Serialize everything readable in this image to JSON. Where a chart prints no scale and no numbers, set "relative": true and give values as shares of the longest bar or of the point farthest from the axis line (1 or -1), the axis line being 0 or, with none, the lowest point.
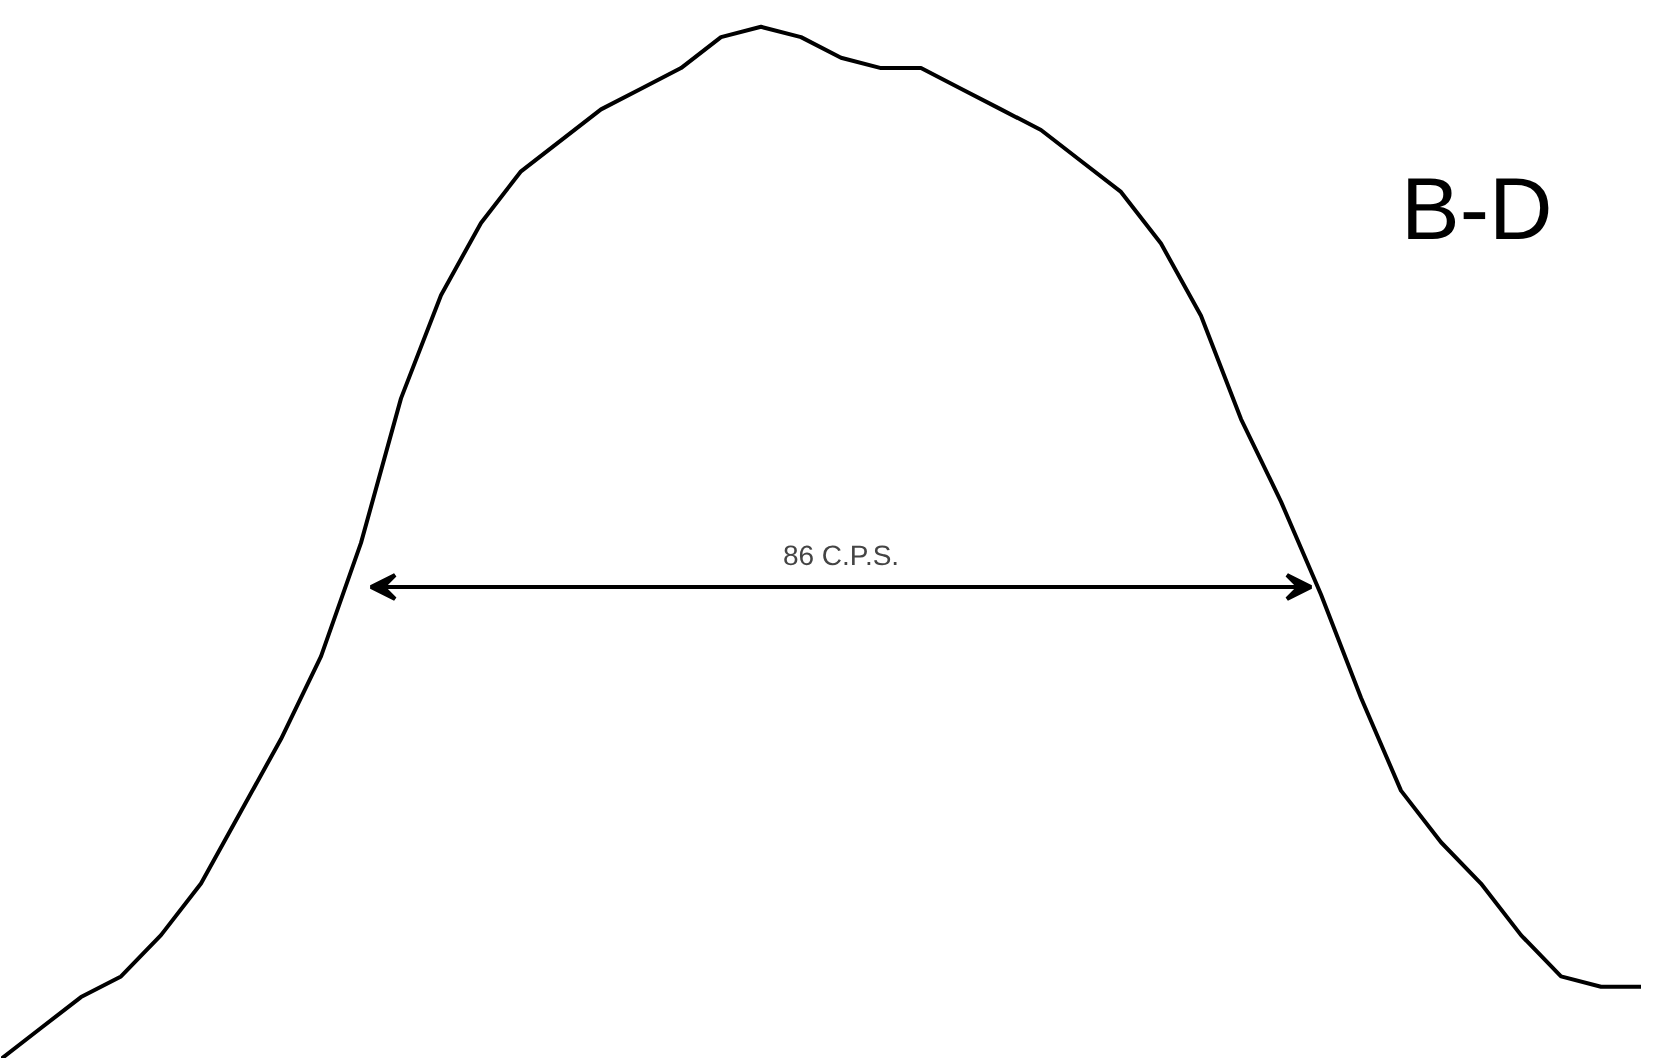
{
  "chart_data": {
    "type": "line",
    "title": "B-D",
    "relative": true,
    "color": "#000000",
    "grid": false,
    "categories": [
      null,
      null,
      null,
      null,
      null,
      null,
      null,
      null,
      null,
      null,
      null,
      null,
      null,
      null,
      null,
      null,
      null,
      null,
      null,
      null,
      null,
      null,
      null,
      null,
      null,
      null,
      null,
      null,
      null,
      null,
      null,
      null,
      null,
      null,
      null,
      null,
      null,
      null,
      null,
      null,
      null,
      null
    ],
    "values": [
      0,
      0.03,
      0.06,
      0.08,
      0.12,
      0.17,
      0.24,
      0.31,
      0.39,
      0.5,
      0.64,
      0.74,
      0.81,
      0.86,
      0.89,
      0.92,
      0.94,
      0.96,
      0.99,
      1.0,
      0.99,
      0.97,
      0.96,
      0.96,
      0.94,
      0.92,
      0.9,
      0.87,
      0.84,
      0.79,
      0.72,
      0.62,
      0.54,
      0.45,
      0.35,
      0.26,
      0.21,
      0.17,
      0.12,
      0.08,
      0.07,
      0.07
    ],
    "annotations": [
      "86 C.P.S."
    ]
  }
}
